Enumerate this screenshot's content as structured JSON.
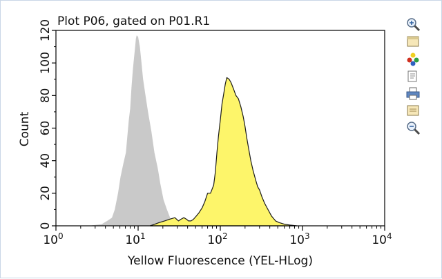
{
  "chart_data": {
    "type": "area",
    "title": "Plot P06, gated on P01.R1",
    "xlabel": "Yellow Fluorescence (YEL-HLog)",
    "ylabel": "Count",
    "x_scale": "log",
    "xlim": [
      1,
      10000
    ],
    "ylim": [
      0,
      120
    ],
    "x_ticks": [
      {
        "value": 1,
        "base": "10",
        "exp": "0"
      },
      {
        "value": 10,
        "base": "10",
        "exp": "1"
      },
      {
        "value": 100,
        "base": "10",
        "exp": "2"
      },
      {
        "value": 1000,
        "base": "10",
        "exp": "3"
      },
      {
        "value": 10000,
        "base": "10",
        "exp": "4"
      }
    ],
    "y_ticks": [
      0,
      20,
      40,
      60,
      80,
      100,
      120
    ],
    "series": [
      {
        "color": "#c9c9c9",
        "outline": false,
        "points": [
          [
            2.5,
            0
          ],
          [
            3.0,
            0.5
          ],
          [
            3.6,
            1
          ],
          [
            4.2,
            3
          ],
          [
            4.8,
            5
          ],
          [
            5.2,
            10
          ],
          [
            5.7,
            20
          ],
          [
            6.1,
            30
          ],
          [
            6.6,
            38
          ],
          [
            7.1,
            45
          ],
          [
            7.4,
            55
          ],
          [
            7.7,
            65
          ],
          [
            8.0,
            72
          ],
          [
            8.3,
            85
          ],
          [
            8.6,
            95
          ],
          [
            8.9,
            103
          ],
          [
            9.2,
            110
          ],
          [
            9.4,
            115
          ],
          [
            9.6,
            117
          ],
          [
            10.0,
            116
          ],
          [
            10.5,
            110
          ],
          [
            11.0,
            100
          ],
          [
            11.5,
            90
          ],
          [
            12.3,
            80
          ],
          [
            13.2,
            70
          ],
          [
            14.5,
            58
          ],
          [
            15.8,
            45
          ],
          [
            17.4,
            35
          ],
          [
            18.6,
            26
          ],
          [
            20.4,
            16
          ],
          [
            22.4,
            10
          ],
          [
            24.5,
            5
          ],
          [
            27,
            1
          ],
          [
            32,
            0
          ]
        ]
      },
      {
        "color": "#fdf56a",
        "outline": true,
        "points": [
          [
            14,
            0
          ],
          [
            16,
            1
          ],
          [
            18,
            2
          ],
          [
            21,
            3
          ],
          [
            24,
            4
          ],
          [
            28,
            5
          ],
          [
            31,
            3
          ],
          [
            33,
            4
          ],
          [
            36,
            5
          ],
          [
            39,
            4
          ],
          [
            41,
            3
          ],
          [
            44,
            3
          ],
          [
            47,
            4
          ],
          [
            51,
            6
          ],
          [
            55,
            8
          ],
          [
            60,
            11
          ],
          [
            65,
            15
          ],
          [
            70,
            20
          ],
          [
            76,
            20
          ],
          [
            83,
            25
          ],
          [
            87,
            33
          ],
          [
            91,
            45
          ],
          [
            95,
            55
          ],
          [
            100,
            65
          ],
          [
            105,
            75
          ],
          [
            110,
            81
          ],
          [
            115,
            87
          ],
          [
            120,
            91
          ],
          [
            128,
            90
          ],
          [
            135,
            88
          ],
          [
            145,
            84
          ],
          [
            155,
            80
          ],
          [
            166,
            78
          ],
          [
            178,
            73
          ],
          [
            190,
            67
          ],
          [
            200,
            61
          ],
          [
            210,
            54
          ],
          [
            222,
            47
          ],
          [
            235,
            40
          ],
          [
            250,
            34
          ],
          [
            270,
            28
          ],
          [
            285,
            24
          ],
          [
            300,
            22
          ],
          [
            320,
            18
          ],
          [
            345,
            14
          ],
          [
            380,
            10
          ],
          [
            420,
            6
          ],
          [
            470,
            3
          ],
          [
            520,
            2
          ],
          [
            600,
            1
          ],
          [
            700,
            0.5
          ],
          [
            850,
            0
          ]
        ]
      }
    ]
  },
  "toolbar": {
    "icons": [
      "zoom-in-icon",
      "copy-icon",
      "color-palette-icon",
      "layout-icon",
      "print-icon",
      "export-icon",
      "zoom-out-icon"
    ]
  }
}
